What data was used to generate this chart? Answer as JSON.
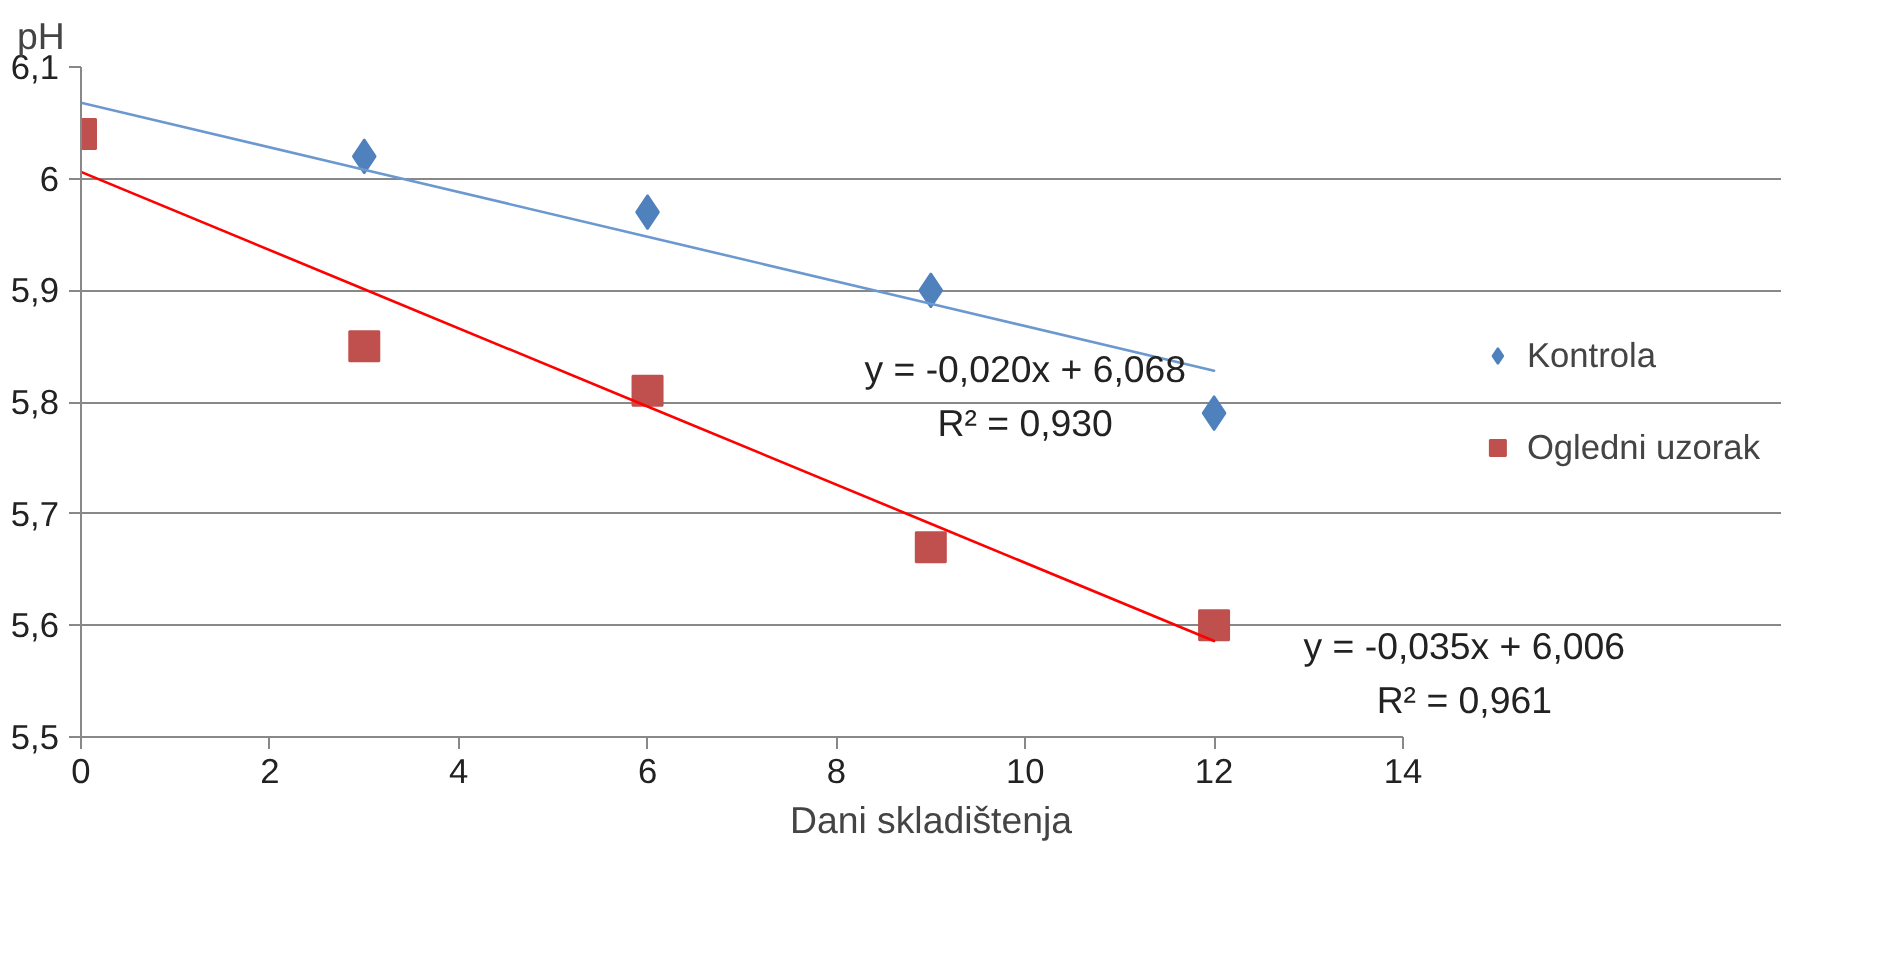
{
  "chart_data": {
    "type": "scatter",
    "xlabel": "Dani skladištenja",
    "ylabel": "pH",
    "x": [
      0,
      3,
      6,
      9,
      12
    ],
    "series": [
      {
        "name": "Kontrola",
        "color": "#4f81bd",
        "marker": "diamond",
        "values": [
          null,
          6.02,
          5.97,
          5.9,
          5.79
        ]
      },
      {
        "name": "Ogledni uzorak",
        "color": "#c0504d",
        "marker": "square",
        "values": [
          6.04,
          5.85,
          5.81,
          5.67,
          5.6
        ]
      },
      {
        "type": "line",
        "color": "#6a98cf",
        "values": [
          6.068,
          6.008,
          5.948,
          5.888,
          5.828
        ]
      },
      {
        "type": "line",
        "color": "#ff0000",
        "values": [
          6.006,
          5.901,
          5.796,
          5.691,
          5.586
        ]
      }
    ],
    "annotations": [
      "y = -0,020x + 6,068\nR² = 0,930",
      "y = -0,035x + 6,006\nR² = 0,961"
    ],
    "xlim": [
      0,
      14
    ],
    "xticks": [
      0,
      2,
      4,
      6,
      8,
      10,
      12,
      14
    ],
    "ylim": [
      5.5,
      6.1
    ],
    "yticks": [
      {
        "value": 5.5,
        "label": "5,5"
      },
      {
        "value": 5.6,
        "label": "5,6"
      },
      {
        "value": 5.7,
        "label": "5,7"
      },
      {
        "value": 5.8,
        "label": "5,8"
      },
      {
        "value": 5.9,
        "label": "5,9"
      },
      {
        "value": 6.0,
        "label": "6"
      },
      {
        "value": 6.1,
        "label": "6,1"
      }
    ],
    "grid": "y",
    "legend": "right"
  }
}
